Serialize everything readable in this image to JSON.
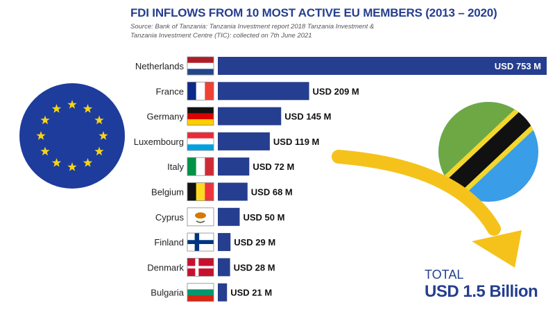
{
  "header": {
    "title": "FDI INFLOWS FROM 10 MOST ACTIVE EU MEMBERS (2013 – 2020)",
    "source_line1": "Source:  Bank of Tanzania: Tanzania Investment report 2018 Tanzania Investment &",
    "source_line2": "Tanzania Investment Centre (TIC): collected on 7th June 2021"
  },
  "chart_data": {
    "type": "bar",
    "orientation": "horizontal",
    "categories": [
      "Netherlands",
      "France",
      "Germany",
      "Luxembourg",
      "Italy",
      "Belgium",
      "Cyprus",
      "Finland",
      "Denmark",
      "Bulgaria"
    ],
    "values": [
      753,
      209,
      145,
      119,
      72,
      68,
      50,
      29,
      28,
      21
    ],
    "value_labels": [
      "USD 753 M",
      "USD 209 M",
      "USD 145 M",
      "USD 119 M",
      "USD 72 M",
      "USD 68 M",
      "USD 50 M",
      "USD 29 M",
      "USD 28 M",
      "USD 21 M"
    ],
    "unit": "USD M",
    "bar_color": "#253e8f",
    "xlim": [
      0,
      753
    ]
  },
  "flags": [
    "netherlands-flag-icon",
    "france-flag-icon",
    "germany-flag-icon",
    "luxembourg-flag-icon",
    "italy-flag-icon",
    "belgium-flag-icon",
    "cyprus-flag-icon",
    "finland-flag-icon",
    "denmark-flag-icon",
    "bulgaria-flag-icon"
  ],
  "decor": {
    "left_emblem": "eu-flag-circle-icon",
    "right_emblem": "tanzania-flag-circle-icon",
    "arrow": "yellow-curved-arrow-icon",
    "arrow_color": "#f5c21b"
  },
  "total": {
    "label": "TOTAL",
    "value": "USD 1.5 Billion"
  }
}
